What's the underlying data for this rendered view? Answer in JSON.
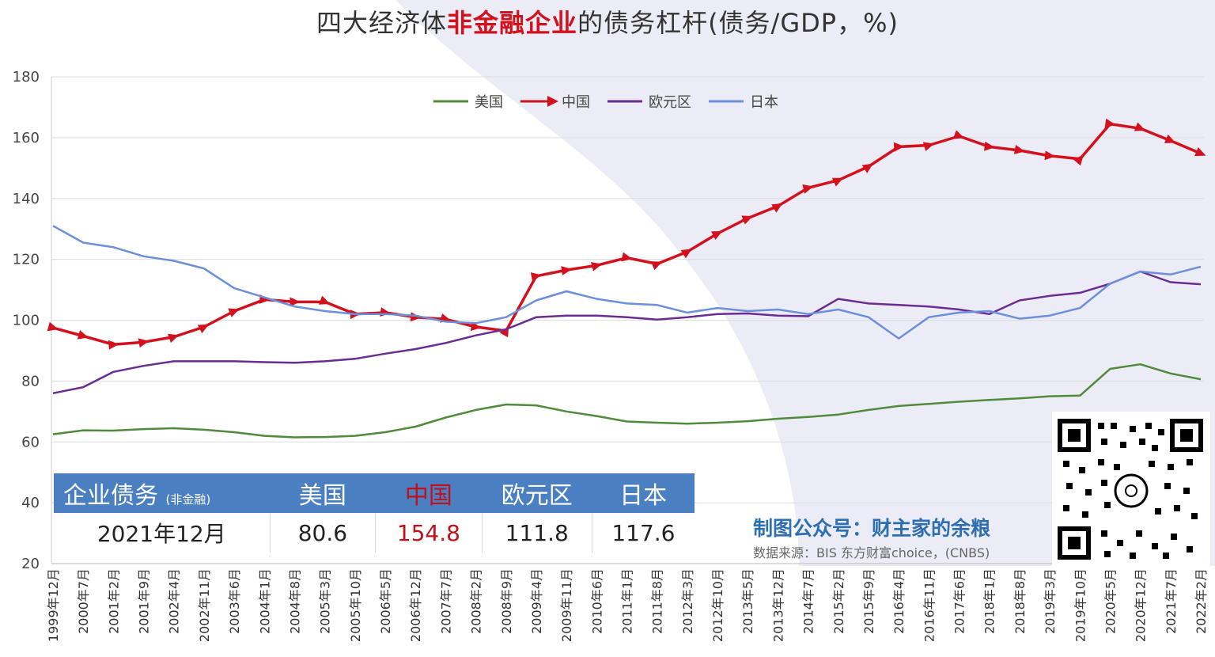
{
  "title_parts": {
    "pre": "四大经济体",
    "highlight": "非金融企业",
    "post": "的债务杠杆(债务/GDP，%)"
  },
  "colors": {
    "us": "#4e8b3a",
    "china": "#d4101c",
    "euro": "#6a2c91",
    "japan": "#6b8fdb",
    "table_header": "#4a7fc1"
  },
  "chart_data": {
    "type": "line",
    "ylim": [
      20,
      180
    ],
    "yticks": [
      "180",
      "160",
      "140",
      "120",
      "100",
      "80",
      "60",
      "40",
      "20"
    ],
    "xlabel": "",
    "ylabel": "",
    "legend_position": "top-center",
    "x_tick_labels": [
      "1999年12月",
      "2000年7月",
      "2001年2月",
      "2001年9月",
      "2002年4月",
      "2002年11月",
      "2003年6月",
      "2004年1月",
      "2004年8月",
      "2005年3月",
      "2005年10月",
      "2006年5月",
      "2006年12月",
      "2007年7月",
      "2008年2月",
      "2008年9月",
      "2009年4月",
      "2009年11月",
      "2010年6月",
      "2011年1月",
      "2011年8月",
      "2012年3月",
      "2012年10月",
      "2013年5月",
      "2013年12月",
      "2014年7月",
      "2015年2月",
      "2015年9月",
      "2016年4月",
      "2016年11月",
      "2017年6月",
      "2018年1月",
      "2018年8月",
      "2019年3月",
      "2019年10月",
      "2020年5月",
      "2020年12月",
      "2021年7月",
      "2022年2月"
    ],
    "series": [
      {
        "name": "美国",
        "key": "us",
        "marker": "none",
        "values": [
          62.5,
          63.8,
          63.7,
          64.2,
          64.5,
          64.0,
          63.2,
          62.0,
          61.5,
          61.6,
          62.0,
          63.2,
          65.0,
          68.0,
          70.5,
          72.3,
          72.0,
          70.0,
          68.5,
          66.7,
          66.3,
          66.0,
          66.3,
          66.8,
          67.6,
          68.2,
          69.0,
          70.5,
          71.8,
          72.5,
          73.2,
          73.8,
          74.3,
          75.0,
          75.2,
          84.0,
          85.5,
          82.5,
          80.6
        ]
      },
      {
        "name": "中国",
        "key": "china",
        "marker": "arrow",
        "values": [
          97.5,
          94.8,
          92.0,
          92.8,
          94.5,
          97.8,
          103.0,
          106.8,
          106.0,
          106.0,
          102.0,
          102.5,
          101.0,
          100.3,
          97.8,
          96.5,
          114.5,
          116.5,
          118.0,
          120.5,
          118.5,
          122.5,
          128.5,
          133.5,
          137.5,
          143.5,
          146.0,
          150.5,
          157.0,
          157.5,
          160.5,
          157.0,
          155.8,
          154.0,
          153.0,
          164.5,
          163.0,
          159.0,
          154.8
        ]
      },
      {
        "name": "欧元区",
        "key": "euro",
        "marker": "none",
        "values": [
          76.0,
          78.0,
          83.0,
          85.0,
          86.5,
          86.5,
          86.5,
          86.2,
          86.0,
          86.5,
          87.3,
          89.0,
          90.5,
          92.5,
          95.0,
          97.0,
          101.0,
          101.5,
          101.5,
          101.0,
          100.2,
          101.0,
          102.0,
          102.2,
          101.5,
          101.3,
          107.0,
          105.5,
          105.0,
          104.5,
          103.5,
          102.0,
          106.5,
          108.0,
          109.0,
          112.0,
          116.0,
          112.5,
          111.8
        ]
      },
      {
        "name": "日本",
        "key": "japan",
        "marker": "none",
        "values": [
          131.0,
          125.5,
          124.0,
          121.0,
          119.5,
          117.0,
          110.5,
          107.5,
          104.5,
          103.0,
          102.0,
          102.0,
          101.5,
          99.5,
          99.0,
          101.0,
          106.5,
          109.5,
          107.0,
          105.5,
          105.0,
          102.5,
          104.0,
          103.0,
          103.5,
          102.0,
          103.5,
          101.0,
          94.0,
          101.0,
          102.5,
          103.0,
          100.5,
          101.5,
          104.0,
          112.0,
          116.0,
          115.0,
          117.6
        ]
      }
    ]
  },
  "table": {
    "header_label": "企业债务",
    "header_sub": "(非金融)",
    "columns": [
      "美国",
      "中国",
      "欧元区",
      "日本"
    ],
    "date": "2021年12月",
    "values": [
      "80.6",
      "154.8",
      "111.8",
      "117.6"
    ]
  },
  "credit": "制图公众号：财主家的余粮",
  "source": "数据来源：BIS  东方财富choice，(CNBS)"
}
